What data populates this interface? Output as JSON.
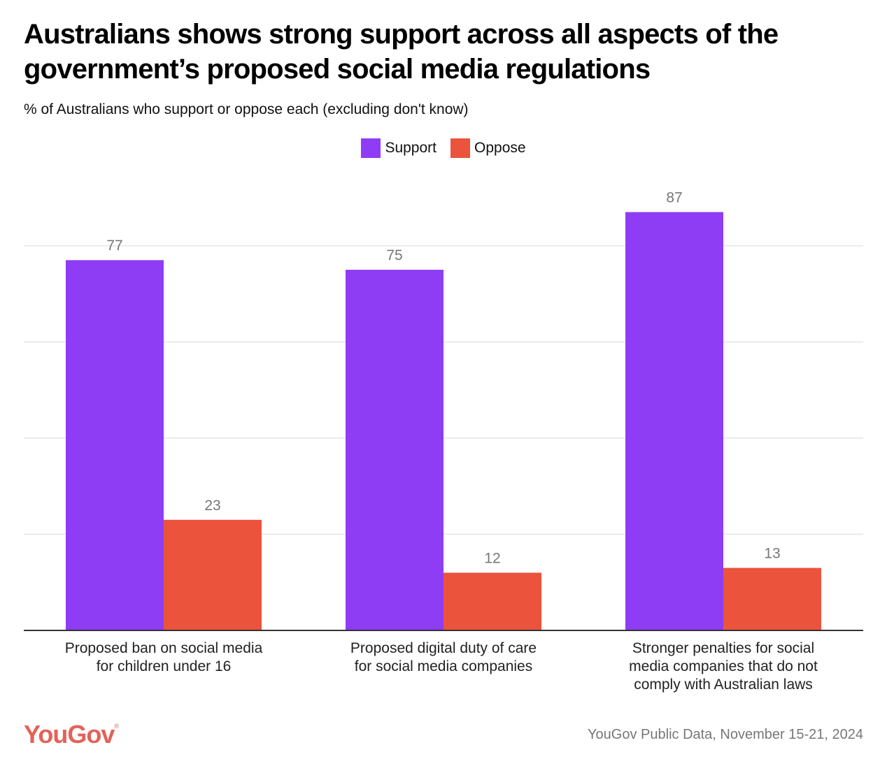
{
  "header": {
    "title": "Australians shows strong support across all aspects of the government’s proposed social media regulations",
    "subtitle": "% of Australians who support or oppose each (excluding don't know)"
  },
  "legend": [
    {
      "label": "Support",
      "color": "#8f3cf5"
    },
    {
      "label": "Oppose",
      "color": "#eb533c"
    }
  ],
  "footer": {
    "logo": "YouGov",
    "logo_mark": "®",
    "logo_color": "#e3625a",
    "source": "YouGov Public Data, November 15-21, 2024"
  },
  "chart_data": {
    "type": "bar",
    "title": "Australians shows strong support across all aspects of the government’s proposed social media regulations",
    "subtitle": "% of Australians who support or oppose each (excluding don't know)",
    "categories": [
      [
        "Proposed ban on social media",
        "for children under 16"
      ],
      [
        "Proposed digital duty of care",
        "for social media companies"
      ],
      [
        "Stronger penalties for social",
        "media companies that do not",
        "comply with Australian laws"
      ]
    ],
    "series": [
      {
        "name": "Support",
        "color": "#8f3cf5",
        "values": [
          77,
          75,
          87
        ]
      },
      {
        "name": "Oppose",
        "color": "#eb533c",
        "values": [
          23,
          12,
          13
        ]
      }
    ],
    "xlabel": "",
    "ylabel": "",
    "ylim": [
      0,
      80
    ],
    "gridlines": [
      20,
      40,
      60,
      80
    ],
    "grid": true,
    "y_tick_labels_shown": false,
    "data_labels": true,
    "legend_position": "top-center"
  }
}
